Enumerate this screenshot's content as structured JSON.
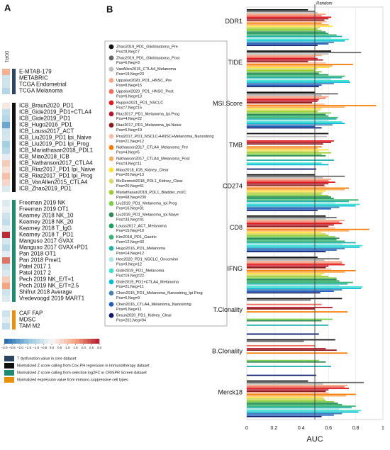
{
  "chart_data": [
    {
      "type": "heatmap",
      "panel": "A",
      "column_label": "DDR1",
      "clim": [
        -3,
        3
      ],
      "colormap": [
        "#2166ac",
        "#92c5de",
        "#f7f7f7",
        "#f4a582",
        "#b2182b"
      ],
      "colorbar_ticks": [
        {
          "value": -3,
          "label": "−3.0"
        },
        {
          "value": -2.5,
          "label": "−2.5"
        },
        {
          "value": -2,
          "label": "−2.0"
        },
        {
          "value": -1.5,
          "label": "−1.5"
        },
        {
          "value": -1,
          "label": "−1.0"
        },
        {
          "value": -0.5,
          "label": "−0.5"
        },
        {
          "value": 0,
          "label": "0.0"
        },
        0.5,
        {
          "value": 1,
          "label": "1.0"
        },
        1.5,
        {
          "value": 2,
          "label": "2.0"
        },
        2.5,
        {
          "value": 3,
          "label": "3.0"
        }
      ],
      "groups": [
        {
          "name": "T dysfunction value in core dataset",
          "color": "#2b4560",
          "labels": [
            "E-MTAB-179",
            "METABRIC",
            "TCGA Endometrial",
            "TCGA Melanoma"
          ],
          "values": [
            1.3,
            -0.6,
            -0.6,
            -1.0
          ]
        },
        {
          "name": "Normalized Z score calling from Cox-PH regression in Immunotherapy dataset",
          "color": "#111111",
          "labels": [
            "ICB_Braun2020_PD1",
            "ICB_Gide2019_PD1+CTLA4",
            "ICB_Gide2019_PD1",
            "ICB_Hugo2016_PD1",
            "ICB_Lauss2017_ACT",
            "ICB_Liu2019_PD1 Ipi_Naive",
            "ICB_Liu2019_PD1 Ipi_Prog",
            "ICB_Mariathasan2018_PDL1",
            "ICB_Miao2018_ICB",
            "ICB_Nathanson2017_CTLA4",
            "ICB_Riaz2017_PD1 Ipi_Naive",
            "ICB_Riaz2017_PD1 Ipi_Prog",
            "ICB_VanAllen2015_CTLA4",
            "ICB_Zhao2019_PD1"
          ],
          "values": [
            0.3,
            -0.8,
            -1.0,
            -2.0,
            -0.6,
            -0.5,
            -1.2,
            -0.9,
            -0.3,
            0.8,
            0.4,
            1.0,
            0.6,
            -0.4
          ]
        },
        {
          "name": "Normalized Z score calling from selection log2FC in CRISPR Screen dataset",
          "color": "#1f8a70",
          "labels": [
            "Freeman 2019 NK",
            "Freeman 2019 OT1",
            "Kearney 2018 NK_10",
            "Kearney 2018 NK_20",
            "Kearney 2018 T_IgG",
            "Kearney 2018 T_PD1",
            "Manguso 2017 GVAX",
            "Manguso 2017 GVAX+PD1",
            "Pan 2018 OT1",
            "Pan 2018 Pmel1",
            "Patel 2017 1",
            "Patel 2017 2",
            "Pech 2019 NK_E/T=1",
            "Pech 2019 NK_E/T=2.5",
            "Shifrut 2018 Average",
            "Vredevoogd 2019 MART1"
          ],
          "values": [
            -0.4,
            -0.2,
            -0.6,
            -0.8,
            -0.3,
            2.8,
            -0.5,
            -0.9,
            -0.3,
            2.0,
            -0.7,
            -0.4,
            0.8,
            1.5,
            -0.6,
            -0.4
          ]
        },
        {
          "name": "Normalized expression value from immuno-suppressive cell types",
          "color": "#e8900c",
          "labels": [
            "CAF FAP",
            "MDSC",
            "TAM M2"
          ],
          "values": [
            -0.6,
            -0.3,
            -0.8
          ]
        }
      ]
    },
    {
      "type": "bar",
      "panel": "B",
      "orientation": "horizontal",
      "xlabel": "AUC",
      "xlim": [
        0,
        1
      ],
      "xticks": [
        0,
        0.2,
        0.4,
        0.6,
        0.8,
        1
      ],
      "grid": true,
      "reference_line": {
        "label": "Random",
        "value": 0.5
      },
      "categories": [
        "DDR1",
        "TIDE",
        "MSI.Score",
        "TMB",
        "CD274",
        "CD8",
        "IFNG",
        "T.Clonality",
        "B.Clonality",
        "Merck18"
      ],
      "series": [
        {
          "name": "Zhao2019_PD1_Glioblastoma_Pre",
          "info": "Pos=8,Neg=7",
          "color": "#111111",
          "values": [
            0.45,
            0.62,
            0.5,
            0.6,
            0.5,
            0.58,
            0.52,
            0.7,
            0.65,
            0.45
          ]
        },
        {
          "name": "Zhao2019_PD1_Glioblastoma_Post",
          "info": "Pos=6,Neg=3",
          "color": "#666666",
          "values": [
            0.5,
            0.84,
            0.67,
            null,
            0.72,
            0.66,
            0.68,
            0.47,
            0.42,
            0.86
          ]
        },
        {
          "name": "VanAllen2015_CTLA4_Melanoma",
          "info": "Pos=19,Neg=23",
          "color": "#bdbdbd",
          "values": [
            0.52,
            0.6,
            0.55,
            0.59,
            0.56,
            0.58,
            0.57,
            null,
            null,
            0.56
          ]
        },
        {
          "name": "Uppaluri2020_PD1_HNSC_Pre",
          "info": "Pos=8,Neg=15",
          "color": "#f4a582",
          "values": [
            0.58,
            0.55,
            0.6,
            null,
            0.62,
            0.72,
            0.7,
            null,
            null,
            0.74
          ]
        },
        {
          "name": "Uppaluri2020_PD1_HNSC_Post",
          "info": "Pos=9,Neg=13",
          "color": "#ef6f5e",
          "values": [
            0.55,
            0.5,
            0.58,
            null,
            0.6,
            0.68,
            0.7,
            0.55,
            0.5,
            0.72
          ]
        },
        {
          "name": "Ruppin2021_PD1_NSCLC",
          "info": "Pos=7,Neg=15",
          "color": "#e31a1c",
          "values": [
            0.62,
            0.52,
            0.53,
            0.64,
            0.65,
            0.7,
            0.72,
            null,
            null,
            0.75
          ]
        },
        {
          "name": "Riaz2017_PD1_Melanoma_Ipi.Prog",
          "info": "Pos=4,Neg=22",
          "color": "#b2182b",
          "values": [
            0.6,
            0.56,
            0.52,
            0.62,
            0.6,
            0.64,
            0.6,
            0.63,
            0.58,
            0.6
          ]
        },
        {
          "name": "Riaz2017_PD1_Melanoma_Ipi.Naive",
          "info": "Pos=6,Neg=19",
          "color": "#8b1a1a",
          "values": [
            0.57,
            0.45,
            0.48,
            0.56,
            0.57,
            0.6,
            0.58,
            0.5,
            0.66,
            0.58
          ]
        },
        {
          "name": "Prat2017_PD1_NSCLC+HNSC+Melanoma_Nanostring",
          "info": "Pos=21,Neg=12",
          "color": "#fcbba1",
          "values": [
            0.59,
            0.58,
            0.57,
            null,
            0.58,
            0.65,
            0.62,
            null,
            null,
            0.6
          ]
        },
        {
          "name": "Nathanson2017_CTLA4_Melanoma_Pre",
          "info": "Pos=4,Neg=5",
          "color": "#f57c00",
          "values": [
            0.55,
            0.78,
            0.95,
            0.55,
            0.75,
            0.9,
            0.8,
            0.74,
            0.74,
            0.8
          ]
        },
        {
          "name": "Nathanson2017_CTLA4_Melanoma_Post",
          "info": "Pos=4,Neg=11",
          "color": "#fdae61",
          "values": [
            0.6,
            0.63,
            0.72,
            0.52,
            0.72,
            0.75,
            0.72,
            null,
            null,
            0.73
          ]
        },
        {
          "name": "Miao2018_ICB_Kidney_Clear",
          "info": "Pos=20,Neg=13",
          "color": "#ffe033",
          "values": [
            0.63,
            0.61,
            0.55,
            0.6,
            0.58,
            0.55,
            0.57,
            null,
            null,
            0.56
          ]
        },
        {
          "name": "McDermott2018_PDL1_Kidney_Clear",
          "info": "Pos=20,Neg=61",
          "color": "#d9d96a",
          "values": [
            0.54,
            0.52,
            0.54,
            0.53,
            0.56,
            0.58,
            0.55,
            null,
            null,
            0.57
          ]
        },
        {
          "name": "Mariathasan2018_PDL1_Bladder_mUC",
          "info": "Pos=68,Neg=230",
          "color": "#9acd32",
          "values": [
            0.52,
            0.5,
            0.52,
            0.62,
            0.55,
            0.6,
            0.6,
            null,
            null,
            0.58
          ]
        },
        {
          "name": "Liu2019_PD1_Melanoma_Ipi.Prog",
          "info": "Pos=16,Neg=31",
          "color": "#7ccd4c",
          "values": [
            0.55,
            0.55,
            0.62,
            0.55,
            0.6,
            0.65,
            0.66,
            0.63,
            0.53,
            0.64
          ]
        },
        {
          "name": "Liu2019_PD1_Melanoma_Ipi.Naive",
          "info": "Pos=33,Neg=41",
          "color": "#2e8b57",
          "values": [
            0.58,
            0.53,
            0.58,
            0.58,
            0.62,
            0.68,
            0.66,
            0.55,
            0.58,
            0.67
          ]
        },
        {
          "name": "Lauss2017_ACT_Melanoma",
          "info": "Pos=15,Neg=10",
          "color": "#1b9e5a",
          "values": [
            0.6,
            0.6,
            0.6,
            null,
            0.64,
            0.66,
            0.68,
            null,
            null,
            0.7
          ]
        },
        {
          "name": "Kim2018_PD1_Gastric",
          "info": "Pos=12,Neg=33",
          "color": "#3cb371",
          "values": [
            0.66,
            0.72,
            0.67,
            null,
            0.82,
            0.72,
            0.78,
            null,
            null,
            0.8
          ]
        },
        {
          "name": "Hugo2016_PD1_Melanoma",
          "info": "Pos=14,Neg=12",
          "color": "#20b2aa",
          "values": [
            0.7,
            0.7,
            0.66,
            0.64,
            0.75,
            0.8,
            0.74,
            0.6,
            0.62,
            0.77
          ]
        },
        {
          "name": "Hee2020_PD1_NSCLC_Oncomine",
          "info": "Pos=9,Neg=12",
          "color": "#a8e6e6",
          "values": [
            0.62,
            0.62,
            0.6,
            null,
            0.65,
            0.7,
            0.68,
            null,
            null,
            0.68
          ]
        },
        {
          "name": "Gide2019_PD1_Melanoma",
          "info": "Pos=19,Neg=22",
          "color": "#40e0d0",
          "values": [
            0.75,
            0.75,
            0.7,
            0.55,
            0.83,
            0.85,
            0.85,
            null,
            null,
            0.84
          ]
        },
        {
          "name": "Gide2019_PD1+CTLA4_Melanoma",
          "info": "Pos=21,Neg=11",
          "color": "#00bcd4",
          "values": [
            0.72,
            0.76,
            0.72,
            0.6,
            0.8,
            0.83,
            0.84,
            null,
            null,
            0.82
          ]
        },
        {
          "name": "Chen2016_PD1_Melanoma_Nanostring_Ipi.Prog",
          "info": "Pos=6,Neg=9",
          "color": "#4682b4",
          "values": [
            0.64,
            0.64,
            0.63,
            null,
            0.68,
            0.72,
            0.7,
            null,
            null,
            0.7
          ]
        },
        {
          "name": "Chen2016_CTLA4_Melanoma_Nanostring",
          "info": "Pos=5,Neg=11",
          "color": "#1f5fbf",
          "values": [
            0.6,
            0.55,
            0.5,
            null,
            0.62,
            0.66,
            0.64,
            null,
            null,
            0.64
          ]
        },
        {
          "name": "Braun2020_PD1_Kidney_Clear",
          "info": "Pos=201,Neg=94",
          "color": "#0b1a6e",
          "values": [
            0.52,
            0.53,
            0.55,
            0.51,
            0.52,
            0.58,
            0.54,
            0.53,
            0.51,
            0.55
          ]
        }
      ]
    }
  ]
}
